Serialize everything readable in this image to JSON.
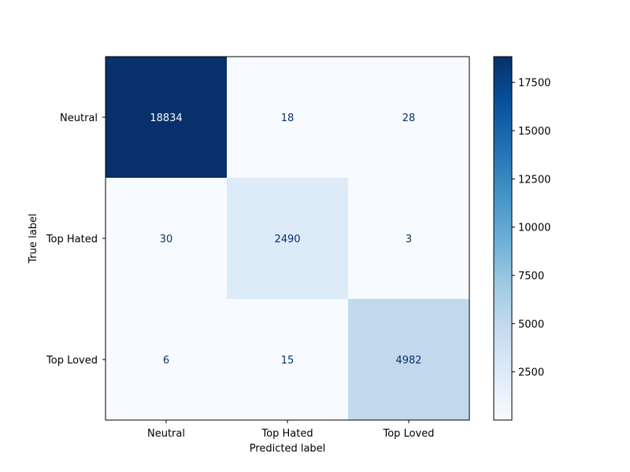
{
  "chart_data": {
    "type": "heatmap",
    "title": "",
    "xlabel": "Predicted label",
    "ylabel": "True label",
    "x_categories": [
      "Neutral",
      "Top Hated",
      "Top Loved"
    ],
    "y_categories": [
      "Neutral",
      "Top Hated",
      "Top Loved"
    ],
    "matrix": [
      [
        18834,
        18,
        28
      ],
      [
        30,
        2490,
        3
      ],
      [
        6,
        15,
        4982
      ]
    ],
    "cell_labels": [
      [
        "18834",
        "18",
        "28"
      ],
      [
        "30",
        "2490",
        "3"
      ],
      [
        "6",
        "15",
        "4982"
      ]
    ],
    "colormap": "Blues",
    "color_low": "#f7fbff",
    "color_high": "#08306b",
    "colorbar": {
      "range": [
        3,
        18834
      ],
      "ticks": [
        2500,
        5000,
        7500,
        10000,
        12500,
        15000,
        17500
      ],
      "tick_labels": [
        "2500",
        "5000",
        "7500",
        "10000",
        "12500",
        "15000",
        "17500"
      ]
    }
  }
}
